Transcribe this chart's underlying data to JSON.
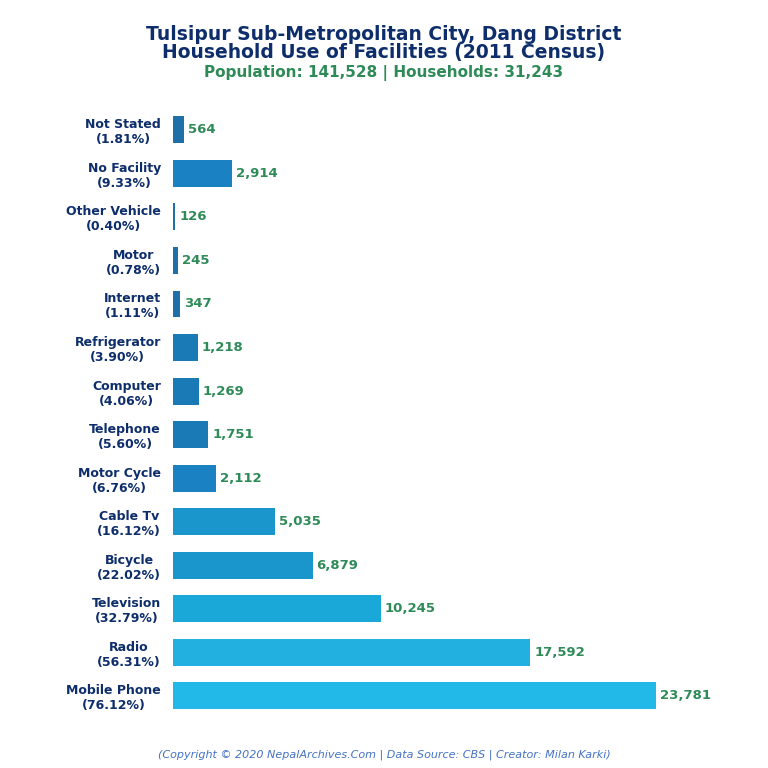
{
  "title_line1": "Tulsipur Sub-Metropolitan City, Dang District",
  "title_line2": "Household Use of Facilities (2011 Census)",
  "subtitle": "Population: 141,528 | Households: 31,243",
  "copyright": "(Copyright © 2020 NepalArchives.Com | Data Source: CBS | Creator: Milan Karki)",
  "categories": [
    "Not Stated\n(1.81%)",
    "No Facility\n(9.33%)",
    "Other Vehicle\n(0.40%)",
    "Motor\n(0.78%)",
    "Internet\n(1.11%)",
    "Refrigerator\n(3.90%)",
    "Computer\n(4.06%)",
    "Telephone\n(5.60%)",
    "Motor Cycle\n(6.76%)",
    "Cable Tv\n(16.12%)",
    "Bicycle\n(22.02%)",
    "Television\n(32.79%)",
    "Radio\n(56.31%)",
    "Mobile Phone\n(76.12%)"
  ],
  "values": [
    564,
    2914,
    126,
    245,
    347,
    1218,
    1269,
    1751,
    2112,
    5035,
    6879,
    10245,
    17592,
    23781
  ],
  "bar_colors": [
    "#1f6fa8",
    "#1a82c2",
    "#1f6fa8",
    "#1f6fa8",
    "#1f6fa8",
    "#1a7ab5",
    "#1a7ab5",
    "#1a7ab5",
    "#1a82c2",
    "#1a96cc",
    "#1a96cc",
    "#1aa8d8",
    "#22b0e0",
    "#22b8e8"
  ],
  "title_color": "#0d2d6b",
  "subtitle_color": "#2e8b57",
  "value_color": "#2e8b57",
  "copyright_color": "#4472c4",
  "ylabel_color": "#0d2d6b",
  "background_color": "#ffffff",
  "value_fontsize": 9.5,
  "label_fontsize": 9.0,
  "title_fontsize": 13.5,
  "subtitle_fontsize": 11.0,
  "copyright_fontsize": 8.0,
  "bar_height": 0.62
}
